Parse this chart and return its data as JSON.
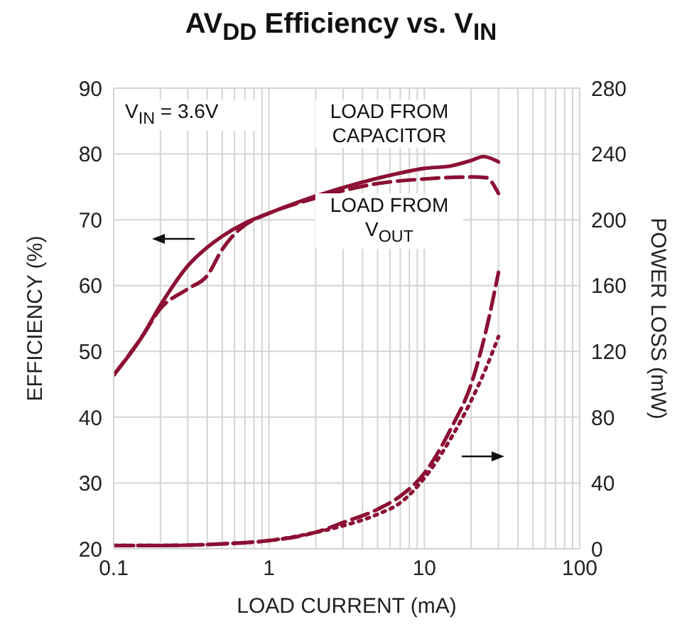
{
  "chart_data": {
    "type": "line",
    "title": "AV$_{DD}$ Efficiency vs. V$_{IN}$",
    "xlabel": "LOAD CURRENT (mA)",
    "ylabel": "EFFICIENCY (%)",
    "y2label": "POWER LOSS (mW)",
    "annotations": [
      "V$_{IN}$ = 3.6V",
      "LOAD FROM CAPACITOR",
      "LOAD FROM V$_{OUT}$"
    ],
    "log": "x",
    "grid": true,
    "marker": "none",
    "xlim": [
      0.1,
      100
    ],
    "xticks": [
      0.1,
      {
        "value": 0.2,
        "label": null
      },
      {
        "value": 0.3,
        "label": null
      },
      {
        "value": 0.4,
        "label": null
      },
      {
        "value": 0.5,
        "label": null
      },
      {
        "value": 0.6,
        "label": null
      },
      {
        "value": 0.7,
        "label": null
      },
      {
        "value": 0.8,
        "label": null
      },
      {
        "value": 0.9,
        "label": null
      },
      1,
      {
        "value": 2,
        "label": null
      },
      {
        "value": 3,
        "label": null
      },
      {
        "value": 4,
        "label": null
      },
      {
        "value": 5,
        "label": null
      },
      {
        "value": 6,
        "label": null
      },
      {
        "value": 7,
        "label": null
      },
      {
        "value": 8,
        "label": null
      },
      {
        "value": 9,
        "label": null
      },
      10,
      {
        "value": 20,
        "label": null
      },
      {
        "value": 30,
        "label": null
      },
      {
        "value": 40,
        "label": null
      },
      {
        "value": 50,
        "label": null
      },
      {
        "value": 60,
        "label": null
      },
      {
        "value": 70,
        "label": null
      },
      {
        "value": 80,
        "label": null
      },
      {
        "value": 90,
        "label": null
      },
      100
    ],
    "ylim": [
      20,
      90
    ],
    "yticks": [
      20,
      30,
      40,
      50,
      60,
      70,
      80,
      90
    ],
    "y2lim": [
      0,
      280
    ],
    "y2ticks": [
      0,
      40,
      80,
      120,
      160,
      200,
      240,
      280
    ],
    "series": [
      {
        "color": "#8c1034",
        "line_style": "solid",
        "x": [
          0.1,
          0.15,
          0.2,
          0.3,
          0.4,
          0.5,
          0.7,
          1,
          2,
          5,
          10,
          15,
          20,
          24,
          30
        ],
        "values": [
          46.4,
          52,
          57,
          63,
          65.8,
          67.5,
          69.5,
          71,
          73.6,
          76.3,
          77.8,
          78.2,
          79,
          79.6,
          78.8
        ]
      },
      {
        "color": "#8c1034",
        "line_style": "dashed",
        "x": [
          0.1,
          0.15,
          0.2,
          0.3,
          0.4,
          0.5,
          0.7,
          0.8,
          1,
          2,
          5,
          10,
          20,
          25,
          30
        ],
        "values": [
          46.4,
          52,
          56.5,
          59.5,
          61.5,
          65.5,
          69.2,
          70,
          71,
          73.3,
          75.5,
          76.2,
          76.5,
          76.4,
          74
        ]
      },
      {
        "color": "#8c1034",
        "line_style": "dashed",
        "axis": "y2",
        "x": [
          0.1,
          0.2,
          0.5,
          1,
          2,
          3,
          5,
          7,
          10,
          15,
          20,
          25,
          30
        ],
        "values": [
          2,
          2,
          3,
          5,
          10,
          16,
          24,
          32,
          46,
          74,
          100,
          133,
          168
        ]
      },
      {
        "color": "#8c1034",
        "line_style": "dotted",
        "axis": "y2",
        "x": [
          0.1,
          0.2,
          0.5,
          1,
          2,
          3,
          5,
          7,
          10,
          15,
          20,
          25,
          30
        ],
        "values": [
          2,
          2,
          3,
          5,
          10,
          14,
          21,
          28,
          43,
          68,
          90,
          110,
          129
        ]
      }
    ]
  }
}
